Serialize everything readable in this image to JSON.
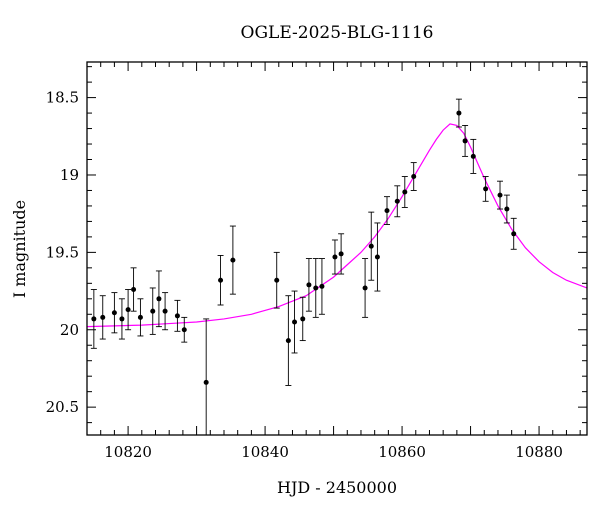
{
  "chart_data": {
    "type": "scatter",
    "title": "OGLE-2025-BLG-1116",
    "xlabel": "HJD - 2450000",
    "ylabel": "I magnitude",
    "xlim": [
      10814,
      10887
    ],
    "ylim": [
      20.68,
      18.27
    ],
    "y_inverted": true,
    "grid": false,
    "x_ticks": [
      10820,
      10840,
      10860,
      10880
    ],
    "x_tick_labels": [
      "10820",
      "10840",
      "10860",
      "10880"
    ],
    "y_ticks": [
      18.5,
      19,
      19.5,
      20,
      20.5
    ],
    "y_tick_labels": [
      "18.5",
      "19",
      "19.5",
      "20",
      "20.5"
    ],
    "colors": {
      "data": "#000000",
      "model": "#ff00ff"
    },
    "series": [
      {
        "kind": "points-with-errorbars",
        "points": [
          {
            "x": 10815.0,
            "y": 19.93,
            "err": 0.19
          },
          {
            "x": 10816.3,
            "y": 19.92,
            "err": 0.14
          },
          {
            "x": 10818.0,
            "y": 19.89,
            "err": 0.13
          },
          {
            "x": 10819.1,
            "y": 19.93,
            "err": 0.13
          },
          {
            "x": 10820.0,
            "y": 19.87,
            "err": 0.13
          },
          {
            "x": 10820.8,
            "y": 19.74,
            "err": 0.14
          },
          {
            "x": 10821.8,
            "y": 19.92,
            "err": 0.12
          },
          {
            "x": 10823.6,
            "y": 19.88,
            "err": 0.15
          },
          {
            "x": 10824.5,
            "y": 19.8,
            "err": 0.18
          },
          {
            "x": 10825.4,
            "y": 19.88,
            "err": 0.12
          },
          {
            "x": 10827.2,
            "y": 19.91,
            "err": 0.1
          },
          {
            "x": 10828.2,
            "y": 20.0,
            "err": 0.08
          },
          {
            "x": 10831.4,
            "y": 20.34,
            "err": 0.41
          },
          {
            "x": 10833.5,
            "y": 19.68,
            "err": 0.16
          },
          {
            "x": 10835.3,
            "y": 19.55,
            "err": 0.22
          },
          {
            "x": 10841.7,
            "y": 19.68,
            "err": 0.18
          },
          {
            "x": 10843.4,
            "y": 20.07,
            "err": 0.29
          },
          {
            "x": 10844.3,
            "y": 19.95,
            "err": 0.2
          },
          {
            "x": 10845.5,
            "y": 19.93,
            "err": 0.14
          },
          {
            "x": 10846.4,
            "y": 19.71,
            "err": 0.17
          },
          {
            "x": 10847.4,
            "y": 19.73,
            "err": 0.19
          },
          {
            "x": 10848.3,
            "y": 19.72,
            "err": 0.18
          },
          {
            "x": 10850.2,
            "y": 19.53,
            "err": 0.11
          },
          {
            "x": 10851.1,
            "y": 19.51,
            "err": 0.13
          },
          {
            "x": 10854.6,
            "y": 19.73,
            "err": 0.19
          },
          {
            "x": 10855.5,
            "y": 19.46,
            "err": 0.22
          },
          {
            "x": 10856.4,
            "y": 19.53,
            "err": 0.22
          },
          {
            "x": 10857.8,
            "y": 19.23,
            "err": 0.09
          },
          {
            "x": 10859.3,
            "y": 19.17,
            "err": 0.1
          },
          {
            "x": 10860.4,
            "y": 19.11,
            "err": 0.1
          },
          {
            "x": 10861.7,
            "y": 19.01,
            "err": 0.09
          },
          {
            "x": 10868.3,
            "y": 18.6,
            "err": 0.09
          },
          {
            "x": 10869.2,
            "y": 18.78,
            "err": 0.1
          },
          {
            "x": 10870.4,
            "y": 18.88,
            "err": 0.11
          },
          {
            "x": 10872.2,
            "y": 19.09,
            "err": 0.08
          },
          {
            "x": 10874.3,
            "y": 19.13,
            "err": 0.09
          },
          {
            "x": 10875.3,
            "y": 19.22,
            "err": 0.09
          },
          {
            "x": 10876.3,
            "y": 19.38,
            "err": 0.1
          }
        ]
      },
      {
        "kind": "model-curve",
        "curve": [
          [
            10814,
            19.98
          ],
          [
            10818,
            19.975
          ],
          [
            10822,
            19.97
          ],
          [
            10826,
            19.96
          ],
          [
            10830,
            19.95
          ],
          [
            10834,
            19.93
          ],
          [
            10838,
            19.9
          ],
          [
            10842,
            19.85
          ],
          [
            10846,
            19.78
          ],
          [
            10850,
            19.66
          ],
          [
            10852,
            19.58
          ],
          [
            10854,
            19.5
          ],
          [
            10856,
            19.4
          ],
          [
            10858,
            19.28
          ],
          [
            10860,
            19.14
          ],
          [
            10862,
            18.99
          ],
          [
            10864,
            18.84
          ],
          [
            10865,
            18.77
          ],
          [
            10866,
            18.71
          ],
          [
            10867,
            18.67
          ],
          [
            10868,
            18.68
          ],
          [
            10869,
            18.73
          ],
          [
            10870,
            18.82
          ],
          [
            10872,
            19.02
          ],
          [
            10874,
            19.2
          ],
          [
            10876,
            19.35
          ],
          [
            10878,
            19.47
          ],
          [
            10880,
            19.56
          ],
          [
            10882,
            19.63
          ],
          [
            10884,
            19.68
          ],
          [
            10887,
            19.73
          ]
        ]
      }
    ]
  }
}
